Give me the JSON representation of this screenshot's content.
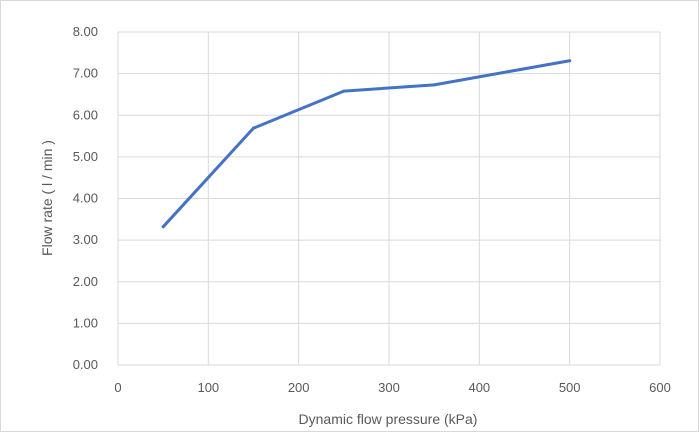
{
  "chart_data": {
    "type": "line",
    "title": "",
    "xlabel": "Dynamic flow pressure (kPa)",
    "ylabel": "Flow rate ( l / min )",
    "xlim": [
      0,
      600
    ],
    "ylim": [
      0,
      8
    ],
    "x_ticks": [
      "0",
      "100",
      "200",
      "300",
      "400",
      "500",
      "600"
    ],
    "y_ticks": [
      "0.00",
      "1.00",
      "2.00",
      "3.00",
      "4.00",
      "5.00",
      "6.00",
      "7.00",
      "8.00"
    ],
    "grid": true,
    "legend": "none",
    "series": [
      {
        "color": "#4472c4",
        "x": [
          50,
          150,
          250,
          350,
          500
        ],
        "y": [
          3.32,
          5.69,
          6.58,
          6.73,
          7.31
        ]
      }
    ]
  }
}
